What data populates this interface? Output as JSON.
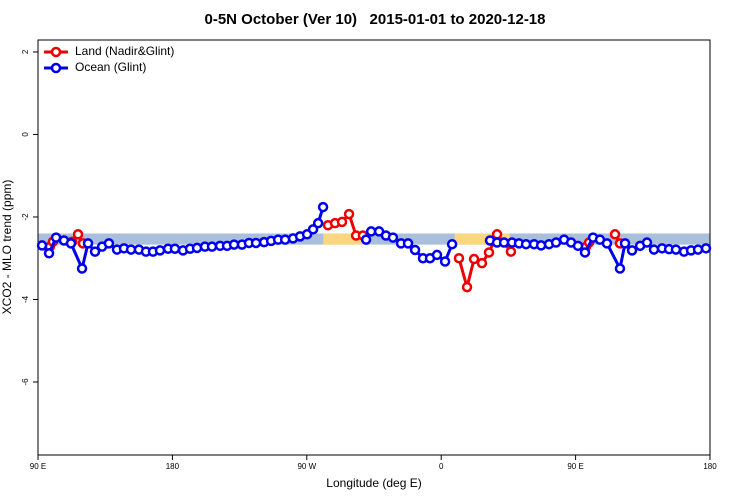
{
  "chart_data": {
    "type": "line",
    "title": "0-5N October (Ver 10)   2015-01-01 to 2020-12-18",
    "xlabel": "Longitude (deg E)",
    "ylabel": "XCO2 - MLO trend (ppm)",
    "xlim": [
      90,
      540
    ],
    "ylim": [
      -7.77,
      2.29
    ],
    "xticks": [
      {
        "value": 90,
        "label": "90 E"
      },
      180,
      {
        "value": 270,
        "label": "90 W"
      },
      {
        "value": 360,
        "label": "0"
      },
      {
        "value": 450,
        "label": "90 E"
      },
      {
        "value": 540,
        "label": "180"
      }
    ],
    "yticks": [
      2,
      0,
      -2,
      -4,
      -6
    ],
    "legend": "top-left",
    "band": {
      "ylim": [
        -2.67,
        -2.4
      ],
      "color": "#a9bfdc",
      "land_color": "#f8d77f",
      "land_ranges": [
        [
          281,
          308
        ],
        [
          369,
          406
        ]
      ]
    },
    "series": [
      {
        "name": "Land (Nadir&Glint)",
        "color": "#ee0000",
        "x": [
          98.0,
          100.0,
          106,
          112.8,
          116.8,
          120.1,
          200,
          284.2,
          288.9,
          293.6,
          298.3,
          303.0,
          307.6,
          340,
          371.9,
          377.3,
          382.0,
          387.3,
          392.0,
          397.4,
          406.7,
          430,
          457.0,
          459.0,
          470,
          476.4,
          479.7
        ],
        "values": [
          -2.72,
          -2.6,
          null,
          -2.6,
          -2.42,
          -2.64,
          null,
          -2.2,
          -2.15,
          -2.12,
          -1.93,
          -2.45,
          -2.45,
          null,
          -3.0,
          -3.7,
          -3.02,
          -3.12,
          -2.86,
          -2.42,
          -2.84,
          null,
          -2.72,
          -2.62,
          null,
          -2.42,
          -2.64
        ]
      },
      {
        "name": "Ocean (Glint)",
        "color": "#0000ee",
        "x": [
          92.7,
          97.4,
          102.1,
          107.4,
          112.1,
          119.5,
          123.5,
          128.2,
          132.9,
          137.5,
          142.9,
          147.6,
          152.3,
          157.6,
          162.3,
          167.0,
          171.7,
          177.1,
          181.7,
          187.1,
          191.8,
          196.5,
          201.8,
          206.5,
          211.9,
          216.6,
          221.3,
          226.6,
          231.3,
          236.0,
          241.4,
          246.1,
          250.8,
          255.5,
          260.8,
          265.5,
          270.2,
          274.2,
          277.6,
          280.9,
          295,
          309.7,
          313.1,
          318.4,
          323.0,
          327.7,
          333.1,
          337.8,
          342.5,
          347.8,
          352.5,
          357.2,
          362.6,
          367.3,
          380,
          392.7,
          397.4,
          402.1,
          407.4,
          412.1,
          416.8,
          422.2,
          426.9,
          432.2,
          436.9,
          442.3,
          447.0,
          451.6,
          456.3,
          461.7,
          466.3,
          471.0,
          479.7,
          483.1,
          487.8,
          493.2,
          497.8,
          502.5,
          507.9,
          512.6,
          517.2,
          522.6,
          527.3,
          532.0,
          537.3
        ],
        "values": [
          -2.69,
          -2.88,
          -2.5,
          -2.57,
          -2.64,
          -3.25,
          -2.64,
          -2.84,
          -2.72,
          -2.64,
          -2.79,
          -2.76,
          -2.79,
          -2.79,
          -2.84,
          -2.84,
          -2.81,
          -2.77,
          -2.77,
          -2.81,
          -2.77,
          -2.75,
          -2.72,
          -2.72,
          -2.7,
          -2.7,
          -2.67,
          -2.67,
          -2.63,
          -2.63,
          -2.61,
          -2.58,
          -2.55,
          -2.55,
          -2.52,
          -2.47,
          -2.42,
          -2.3,
          -2.15,
          -1.76,
          null,
          -2.55,
          -2.35,
          -2.35,
          -2.45,
          -2.5,
          -2.64,
          -2.64,
          -2.8,
          -3.0,
          -3.0,
          -2.92,
          -3.08,
          -2.66,
          null,
          -2.57,
          -2.62,
          -2.62,
          -2.62,
          -2.64,
          -2.66,
          -2.66,
          -2.69,
          -2.66,
          -2.62,
          -2.55,
          -2.62,
          -2.7,
          -2.86,
          -2.5,
          -2.55,
          -2.64,
          -3.25,
          -2.64,
          -2.81,
          -2.7,
          -2.62,
          -2.79,
          -2.76,
          -2.78,
          -2.79,
          -2.84,
          -2.81,
          -2.79,
          -2.76
        ]
      }
    ]
  }
}
